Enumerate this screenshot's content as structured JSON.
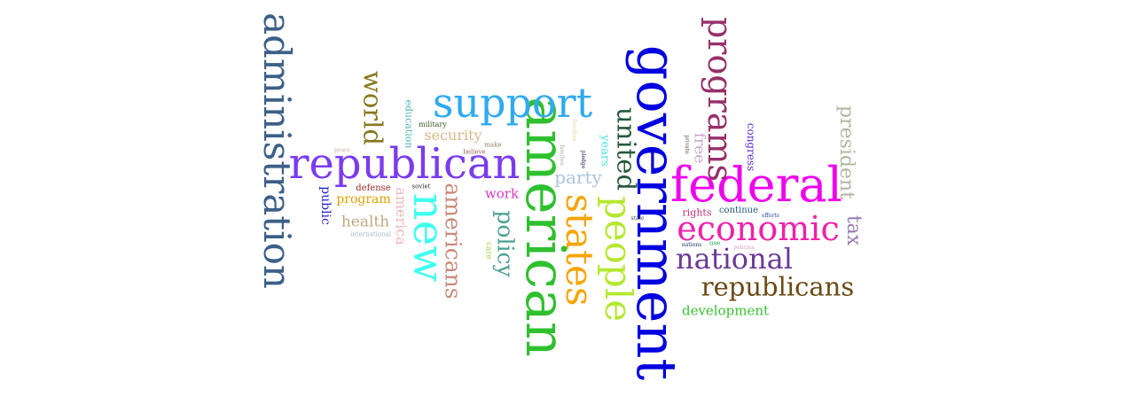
{
  "words": {
    "government": "government",
    "federal": "federal",
    "american": "american",
    "republican": "republican",
    "administration": "administration",
    "support": "support",
    "states": "states",
    "people": "people",
    "economic": "economic",
    "new": "new",
    "programs": "programs",
    "national": "national",
    "republicans": "republicans",
    "united": "united",
    "world": "world",
    "americans": "americans",
    "policy": "policy",
    "president": "president",
    "tax": "tax",
    "security": "security",
    "party": "party",
    "health": "health",
    "america": "america",
    "free": "free",
    "work": "work",
    "development": "development",
    "program": "program",
    "public": "public",
    "education": "education",
    "congress": "congress",
    "years": "years",
    "rights": "rights",
    "continue": "continue",
    "defense": "defense",
    "military": "military",
    "soviet": "soviet",
    "make": "make",
    "believe": "believe",
    "peace": "peace",
    "international": "international",
    "care": "care",
    "freedom": "freedom",
    "families": "families",
    "pledge": "pledge",
    "private": "private",
    "state": "state",
    "efforts": "efforts",
    "nations": "nations",
    "use": "use",
    "policies": "policies"
  },
  "colors": {
    "government": "#0000e0",
    "federal": "#ee00ee",
    "american": "#2ec02e",
    "republican": "#7a3cf0",
    "administration": "#3c6088",
    "support": "#30aaee",
    "states": "#f5a500",
    "people": "#b5e830",
    "economic": "#ee22aa",
    "new": "#40ffee",
    "programs": "#96306a",
    "national": "#6a3a96",
    "republicans": "#6a4a14",
    "united": "#245a3a",
    "world": "#86781c",
    "americans": "#c88a7a",
    "policy": "#4aa090",
    "president": "#b4b4a0",
    "tax": "#9a7ab0",
    "security": "#d8b888",
    "party": "#aac4e0",
    "health": "#c0a880",
    "america": "#f0b8b8",
    "free": "#c8a8c8",
    "work": "#d838c8",
    "development": "#38c030",
    "program": "#e0a000",
    "public": "#2020cc",
    "education": "#50b8b0",
    "congress": "#5a2ad0",
    "years": "#50e0e0",
    "rights": "#c03070",
    "continue": "#205880",
    "defense": "#a02828",
    "military": "#3a5a2a",
    "soviet": "#303030",
    "make": "#888060",
    "believe": "#a06060",
    "peace": "#c8a8a8",
    "international": "#a8b8d0",
    "care": "#a0d040",
    "freedom": "#e8d0a0",
    "families": "#b0a8a0",
    "pledge": "#202040",
    "private": "#6a5040",
    "state": "#404050",
    "efforts": "#2848a8",
    "nations": "#203060",
    "use": "#20a040",
    "policies": "#d0a0b8"
  }
}
